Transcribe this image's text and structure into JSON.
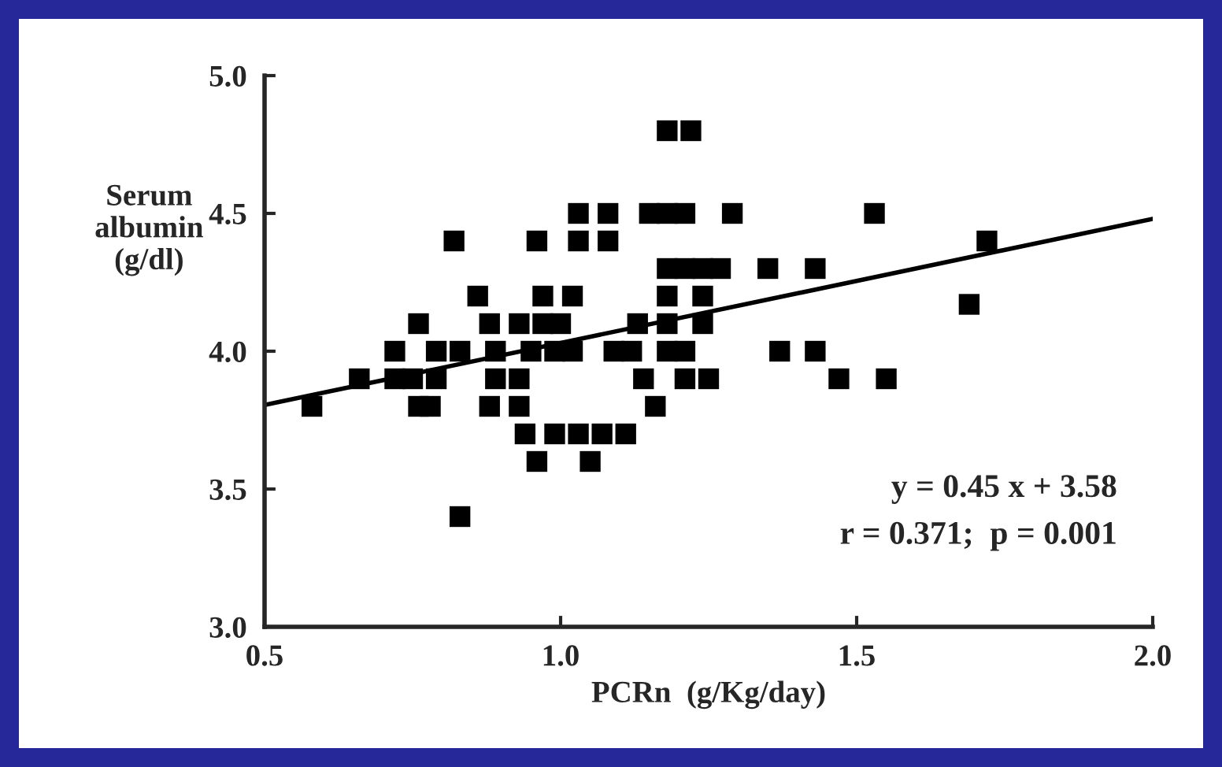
{
  "chart_data": {
    "type": "scatter",
    "xlabel": "PCRn  (g/Kg/day)",
    "ylabel": "Serum\nalbumin\n(g/dl)",
    "xlim": [
      0.5,
      2.0
    ],
    "xticks": [
      {
        "value": 0.5,
        "label": "0.5"
      },
      {
        "value": 1.0,
        "label": "1.0"
      },
      {
        "value": 1.5,
        "label": "1.5"
      },
      {
        "value": 2.0,
        "label": "2.0"
      }
    ],
    "ylim": [
      3.0,
      5.0
    ],
    "yticks": [
      {
        "value": 3.0,
        "label": "3.0"
      },
      {
        "value": 3.5,
        "label": "3.5"
      },
      {
        "value": 4.0,
        "label": "4.0"
      },
      {
        "value": 4.5,
        "label": "4.5"
      },
      {
        "value": 5.0,
        "label": "5.0"
      }
    ],
    "grid": false,
    "legend": false,
    "marker": "square",
    "series": [
      {
        "color": "#000000",
        "x": [
          1.18,
          1.22,
          1.03,
          1.08,
          1.15,
          1.18,
          1.21,
          1.29,
          1.53,
          0.82,
          0.96,
          1.03,
          1.08,
          1.72,
          1.18,
          1.21,
          1.24,
          1.27,
          1.35,
          1.43,
          0.86,
          0.97,
          1.02,
          1.18,
          1.24,
          1.69,
          0.76,
          0.88,
          0.93,
          0.97,
          1.0,
          1.13,
          1.18,
          1.24,
          0.72,
          0.79,
          0.83,
          0.89,
          0.95,
          0.99,
          1.02,
          1.09,
          1.12,
          1.18,
          1.21,
          1.37,
          1.43,
          0.66,
          0.72,
          0.75,
          0.79,
          0.89,
          0.93,
          1.14,
          1.21,
          1.25,
          1.47,
          1.55,
          0.58,
          0.76,
          0.78,
          0.88,
          0.93,
          1.16,
          0.94,
          0.99,
          1.03,
          1.07,
          1.11,
          0.96,
          1.05,
          0.83
        ],
        "values": [
          4.8,
          4.8,
          4.5,
          4.5,
          4.5,
          4.5,
          4.5,
          4.5,
          4.5,
          4.4,
          4.4,
          4.4,
          4.4,
          4.4,
          4.3,
          4.3,
          4.3,
          4.3,
          4.3,
          4.3,
          4.2,
          4.2,
          4.2,
          4.2,
          4.2,
          4.17,
          4.1,
          4.1,
          4.1,
          4.1,
          4.1,
          4.1,
          4.1,
          4.1,
          4.0,
          4.0,
          4.0,
          4.0,
          4.0,
          4.0,
          4.0,
          4.0,
          4.0,
          4.0,
          4.0,
          4.0,
          4.0,
          3.9,
          3.9,
          3.9,
          3.9,
          3.9,
          3.9,
          3.9,
          3.9,
          3.9,
          3.9,
          3.9,
          3.8,
          3.8,
          3.8,
          3.8,
          3.8,
          3.8,
          3.7,
          3.7,
          3.7,
          3.7,
          3.7,
          3.6,
          3.6,
          3.4
        ]
      },
      {
        "type": "line",
        "color": "#000000",
        "marker": "none",
        "line_style": "solid",
        "x": [
          0.5,
          2.0
        ],
        "values": [
          3.805,
          4.48
        ]
      }
    ],
    "annotations": [
      "y = 0.45 x + 3.58",
      "r = 0.371;  p = 0.001"
    ]
  }
}
